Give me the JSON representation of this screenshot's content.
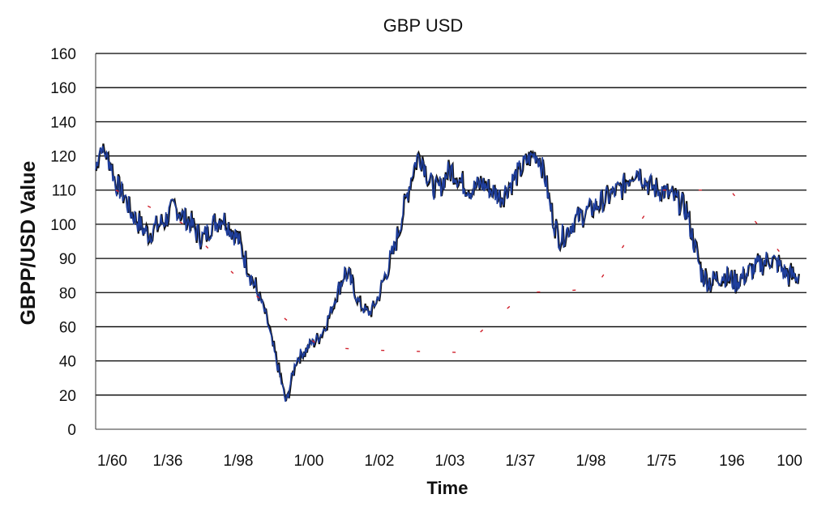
{
  "chart_data": {
    "type": "line",
    "title": "GBP USD",
    "xlabel": "Time",
    "ylabel": "GBPP/USD Value",
    "ylim": [
      0,
      160
    ],
    "y_tick_labels": [
      "0",
      "20",
      "40",
      "60",
      "80",
      "90",
      "100",
      "110",
      "120",
      "140",
      "160",
      "160"
    ],
    "x_tick_labels": [
      "1/60",
      "1/36",
      "1/98",
      "1/00",
      "1/02",
      "1/03",
      "1/37",
      "1/98",
      "1/75",
      "196",
      "100"
    ],
    "grid": true,
    "series": [
      {
        "color": "#1f3f9e",
        "values": [
          116,
          125,
          121,
          118,
          112,
          110,
          108,
          104,
          102,
          100,
          98,
          97,
          99,
          100,
          101,
          103,
          105,
          104,
          102,
          101,
          99,
          97,
          96,
          98,
          100,
          101,
          102,
          100,
          98,
          96,
          92,
          88,
          84,
          80,
          74,
          65,
          52,
          40,
          28,
          15,
          28,
          40,
          44,
          46,
          50,
          52,
          55,
          60,
          68,
          76,
          82,
          86,
          84,
          80,
          74,
          70,
          68,
          72,
          78,
          84,
          88,
          92,
          98,
          104,
          110,
          116,
          120,
          119,
          114,
          111,
          110,
          112,
          115,
          116,
          114,
          112,
          111,
          110,
          111,
          112,
          111,
          110,
          109,
          108,
          110,
          112,
          114,
          116,
          118,
          120,
          121,
          119,
          114,
          106,
          100,
          96,
          97,
          99,
          101,
          102,
          103,
          104,
          105,
          106,
          107,
          108,
          109,
          110,
          111,
          113,
          115,
          116,
          114,
          112,
          111,
          110,
          110,
          109,
          108,
          107,
          106,
          104,
          98,
          92,
          86,
          84,
          83,
          84,
          85,
          85,
          84,
          83,
          84,
          85,
          86,
          87,
          88,
          89,
          90,
          89,
          88,
          86,
          85,
          85,
          85
        ]
      },
      {
        "color": "#d0202c",
        "values": [
          110,
          100,
          80,
          48,
          46,
          45,
          80,
          81,
          110,
          110,
          85
        ]
      }
    ]
  }
}
